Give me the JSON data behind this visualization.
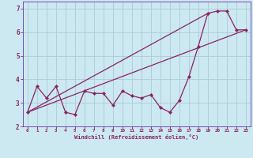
{
  "xlabel": "Windchill (Refroidissement éolien,°C)",
  "ylabel": "",
  "background_color": "#cce8f0",
  "grid_color": "#aaccd8",
  "line_color": "#882266",
  "spine_color": "#6633aa",
  "xlim": [
    -0.5,
    23.5
  ],
  "ylim": [
    2.0,
    7.3
  ],
  "yticks": [
    2,
    3,
    4,
    5,
    6,
    7
  ],
  "xticks": [
    0,
    1,
    2,
    3,
    4,
    5,
    6,
    7,
    8,
    9,
    10,
    11,
    12,
    13,
    14,
    15,
    16,
    17,
    18,
    19,
    20,
    21,
    22,
    23
  ],
  "series1_x": [
    0,
    1,
    2,
    3,
    4,
    5,
    6,
    7,
    8,
    9,
    10,
    11,
    12,
    13,
    14,
    15,
    16,
    17,
    18,
    19,
    20,
    21,
    22,
    23
  ],
  "series1_y": [
    2.6,
    3.7,
    3.2,
    3.7,
    2.6,
    2.5,
    3.5,
    3.4,
    3.4,
    2.9,
    3.5,
    3.3,
    3.2,
    3.35,
    2.8,
    2.6,
    3.1,
    4.1,
    5.4,
    6.8,
    6.9,
    6.9,
    6.1,
    6.1
  ],
  "series2_x": [
    0,
    23
  ],
  "series2_y": [
    2.6,
    6.1
  ],
  "series3_x": [
    0,
    19
  ],
  "series3_y": [
    2.6,
    6.8
  ]
}
